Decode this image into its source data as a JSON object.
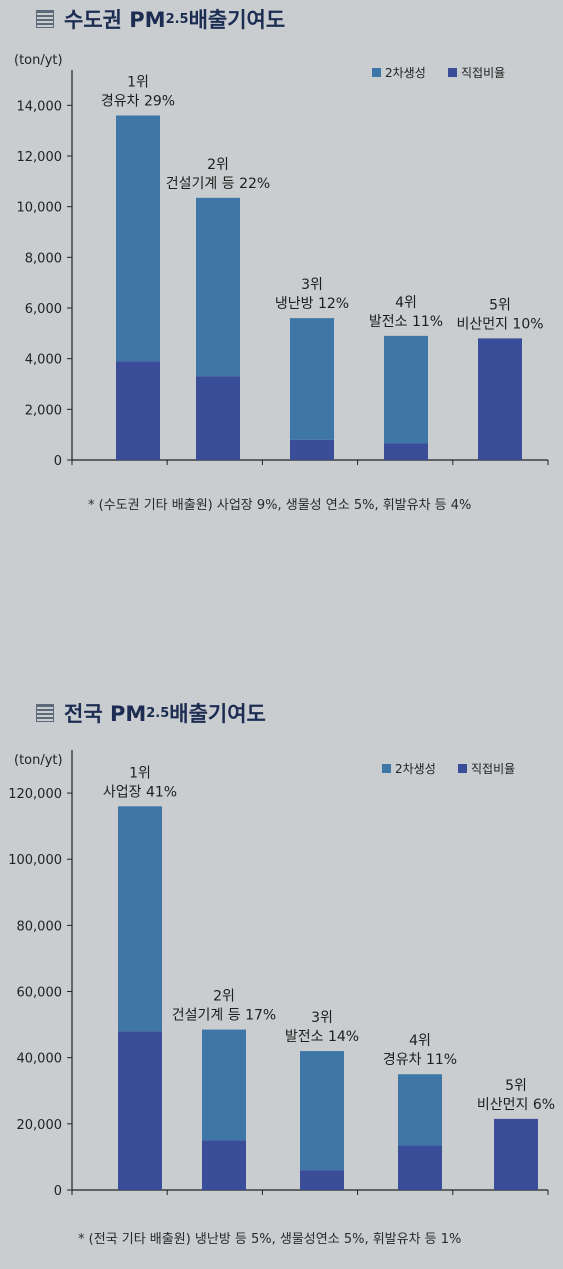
{
  "colors": {
    "secondary": "#3f76a8",
    "direct": "#3a4d98",
    "axis": "#222222"
  },
  "chart_data": [
    {
      "type": "bar",
      "title_prefix": "수도권 PM",
      "title_sub": "2.5",
      "title_suffix": " 배출기여도",
      "unit": "(ton/yt)",
      "ylim": [
        0,
        15000
      ],
      "yticks": [
        0,
        2000,
        4000,
        6000,
        8000,
        10000,
        12000,
        14000
      ],
      "ytick_labels": [
        "0",
        "2,000",
        "4,000",
        "6,000",
        "8,000",
        "10,000",
        "12,000",
        "14,000"
      ],
      "legend": [
        "2차생성",
        "직접비율"
      ],
      "categories": [
        "경유차",
        "건설기계 등",
        "냉난방",
        "발전소",
        "비산먼지"
      ],
      "series": [
        {
          "name": "직접비율",
          "values": [
            3900,
            3300,
            800,
            650,
            4800
          ]
        },
        {
          "name": "2차생성",
          "values": [
            9700,
            7050,
            4800,
            4250,
            0
          ]
        }
      ],
      "totals": [
        13600,
        10350,
        5600,
        4900,
        4800
      ],
      "bar_labels": [
        [
          "1위",
          "경유차 29%"
        ],
        [
          "2위",
          "건설기계 등 22%"
        ],
        [
          "3위",
          "냉난방 12%"
        ],
        [
          "4위",
          "발전소 11%"
        ],
        [
          "5위",
          "비산먼지 10%"
        ]
      ],
      "footnote": "* (수도권 기타 배출원) 사업장 9%, 생물성 연소 5%, 휘발유차 등 4%"
    },
    {
      "type": "bar",
      "title_prefix": "전국 PM",
      "title_sub": "2.5",
      "title_suffix": " 배출기여도",
      "unit": "(ton/yt)",
      "ylim": [
        0,
        130000
      ],
      "yticks": [
        0,
        20000,
        40000,
        60000,
        80000,
        100000,
        120000
      ],
      "ytick_labels": [
        "0",
        "20,000",
        "40,000",
        "60,000",
        "80,000",
        "100,000",
        "120,000"
      ],
      "legend": [
        "2차생성",
        "직접비율"
      ],
      "categories": [
        "사업장",
        "건설기계 등",
        "발전소",
        "경유차",
        "비산먼지"
      ],
      "series": [
        {
          "name": "직접비율",
          "values": [
            48000,
            15000,
            6000,
            13500,
            21500
          ]
        },
        {
          "name": "2차생성",
          "values": [
            68000,
            33500,
            36000,
            21500,
            0
          ]
        }
      ],
      "totals": [
        116000,
        48500,
        42000,
        35000,
        21500
      ],
      "bar_labels": [
        [
          "1위",
          "사업장 41%"
        ],
        [
          "2위",
          "건설기계 등 17%"
        ],
        [
          "3위",
          "발전소 14%"
        ],
        [
          "4위",
          "경유차 11%"
        ],
        [
          "5위",
          "비산먼지 6%"
        ]
      ],
      "footnote": "* (전국 기타 배출원) 냉난방 등 5%, 생물성연소 5%, 휘발유차 등 1%"
    }
  ]
}
